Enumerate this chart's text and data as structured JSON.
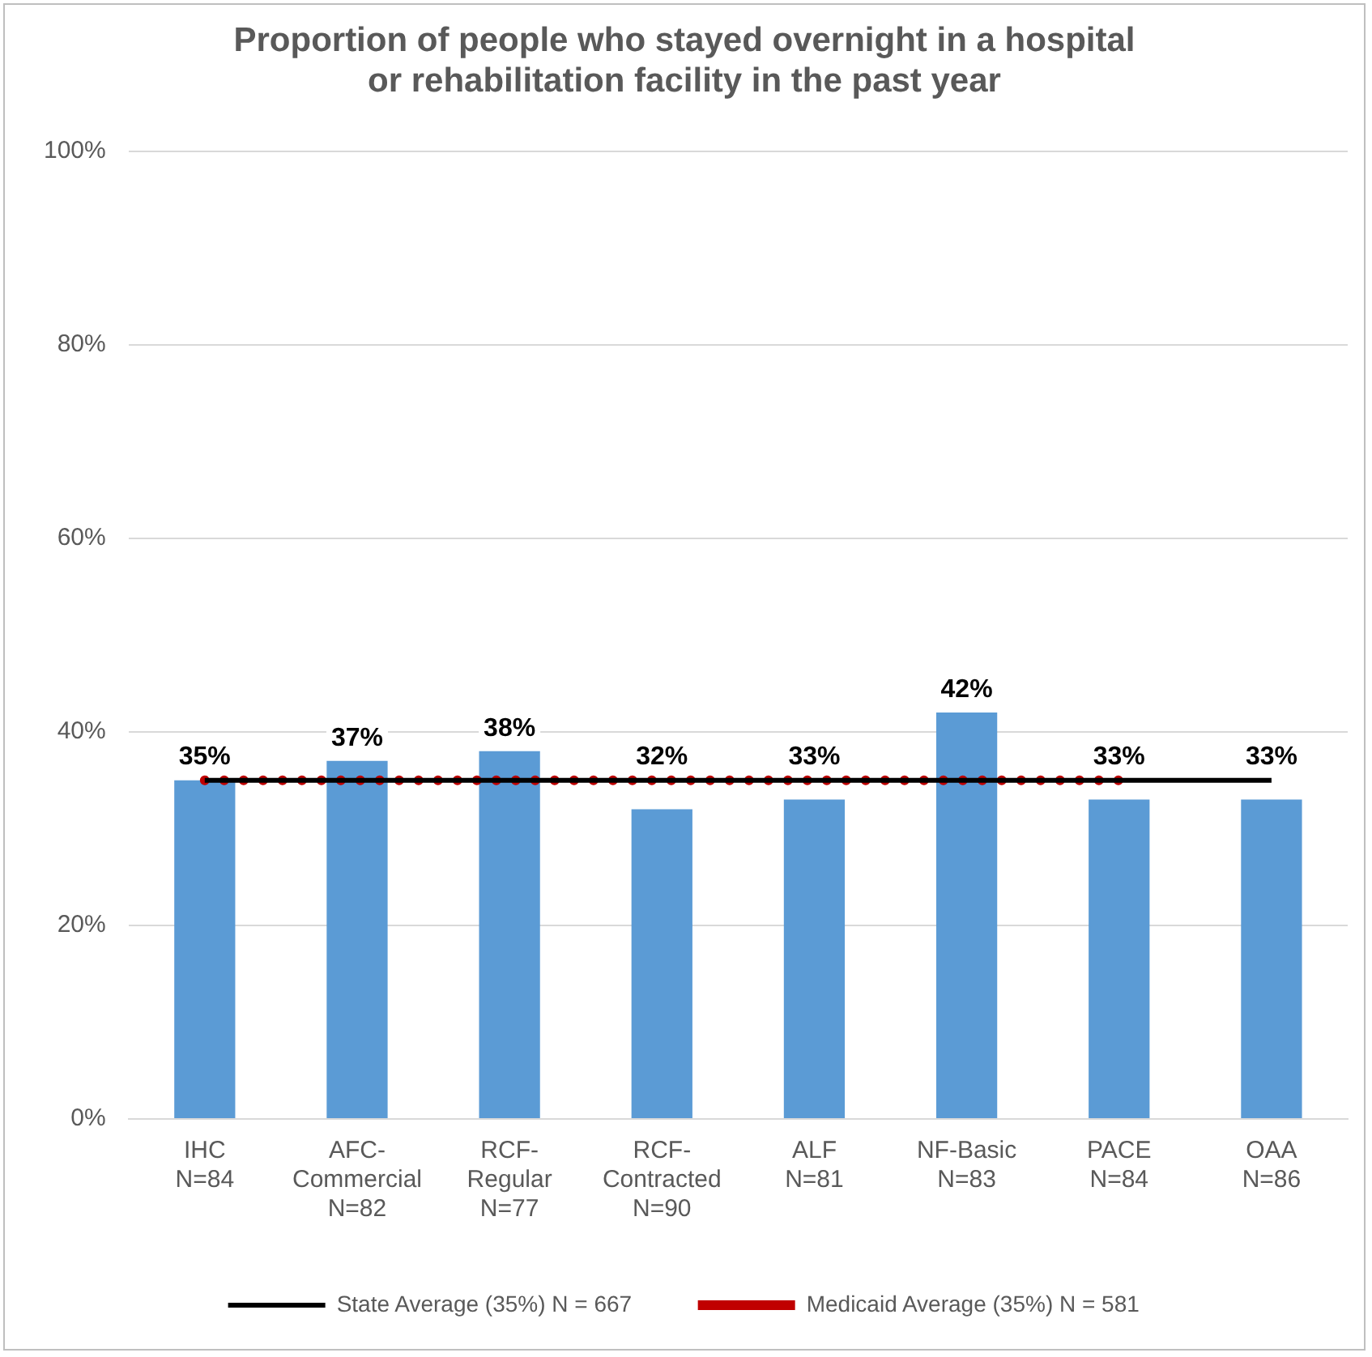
{
  "chart_data": {
    "type": "bar",
    "title": "Proportion of people who stayed overnight in a hospital\nor rehabilitation facility in the past year",
    "categories": [
      "IHC\nN=84",
      "AFC-\nCommercial\nN=82",
      "RCF-\nRegular\nN=77",
      "RCF-\nContracted\nN=90",
      "ALF\nN=81",
      "NF-Basic\nN=83",
      "PACE\nN=84",
      "OAA\nN=86"
    ],
    "series": [
      {
        "color": "#5b9bd5",
        "values": [
          35,
          37,
          38,
          32,
          33,
          42,
          33,
          33
        ],
        "value_labels": [
          "35%",
          "37%",
          "38%",
          "32%",
          "33%",
          "42%",
          "33%",
          "33%"
        ]
      },
      {
        "type": "line",
        "name": "State Average (35%) N = 667",
        "color": "#000000",
        "line_style": "solid",
        "marker": "none",
        "values": [
          35,
          35,
          35,
          35,
          35,
          35,
          35,
          35
        ]
      },
      {
        "type": "line",
        "name": "Medicaid Average (35%) N = 581",
        "color": "#c00000",
        "line_style": "dotted",
        "marker": "none",
        "values": [
          35,
          35,
          35,
          35,
          35,
          35,
          35,
          null
        ]
      }
    ],
    "ylim": [
      0,
      100
    ],
    "yticks": [
      {
        "value": 0,
        "label": "0%"
      },
      {
        "value": 20,
        "label": "20%"
      },
      {
        "value": 40,
        "label": "40%"
      },
      {
        "value": 60,
        "label": "60%"
      },
      {
        "value": 80,
        "label": "80%"
      },
      {
        "value": 100,
        "label": "100%"
      }
    ],
    "grid": "y",
    "legend": "bottom"
  }
}
